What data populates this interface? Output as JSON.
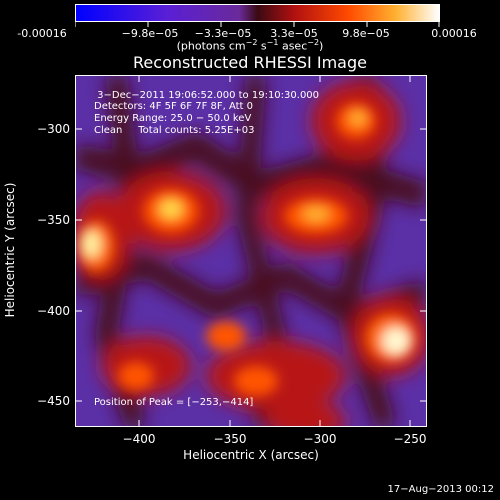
{
  "colorbar": {
    "labels": [
      "-0.00016",
      "−9.8e−05",
      "−3.3e−05",
      "3.3e−05",
      "9.8e−05",
      "0.00016"
    ],
    "units_text": "(photons cm",
    "units_sup1": "−2",
    "units_mid": " s",
    "units_sup2": "−1",
    "units_end": " asec",
    "units_sup3": "−2",
    "units_close": ")"
  },
  "title": "Reconstructed RHESSI Image",
  "info": {
    "time_range": " 3−Dec−2011 19:06:52.000 to 19:10:30.000",
    "detectors": "Detectors: 4F 5F 6F 7F 8F, Att 0",
    "energy": "Energy Range: 25.0 − 50.0 keV",
    "clean": "Clean     Total counts: 5.25E+03",
    "peak": "Position of Peak = [−253,−414]"
  },
  "axes": {
    "xlabel": "Heliocentric X (arcsec)",
    "ylabel": "Heliocentric Y (arcsec)",
    "xticks": [
      "−400",
      "−350",
      "−300",
      "−250"
    ],
    "yticks": [
      "−300",
      "−350",
      "−400",
      "−450"
    ]
  },
  "footer": "17−Aug−2013 00:12"
}
